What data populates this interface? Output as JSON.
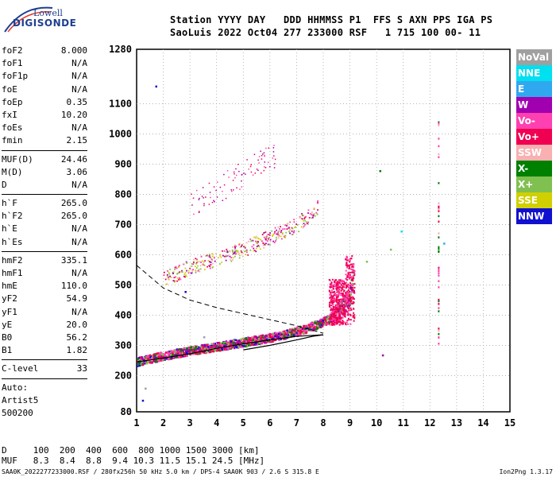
{
  "logo": {
    "line1": "Lowell",
    "line2": "DIGISONDE"
  },
  "header": {
    "line1": "Station YYYY DAY   DDD HHMMSS P1  FFS S AXN PPS IGA PS",
    "line2": "SaoLuis 2022 Oct04 277 233000 RSF   1 715 100 00- 11"
  },
  "params": [
    {
      "k": "foF2",
      "v": "8.000"
    },
    {
      "k": "foF1",
      "v": "N/A"
    },
    {
      "k": "foF1p",
      "v": "N/A"
    },
    {
      "k": "foE",
      "v": "N/A"
    },
    {
      "k": "foEp",
      "v": "0.35"
    },
    {
      "k": "fxI",
      "v": "10.20"
    },
    {
      "k": "foEs",
      "v": "N/A"
    },
    {
      "k": "fmin",
      "v": "2.15"
    },
    {
      "sep": true
    },
    {
      "k": "MUF(D)",
      "v": "24.46"
    },
    {
      "k": "M(D)",
      "v": "3.06"
    },
    {
      "k": "D",
      "v": "N/A"
    },
    {
      "sep": true
    },
    {
      "k": "h`F",
      "v": "265.0"
    },
    {
      "k": "h`F2",
      "v": "265.0"
    },
    {
      "k": "h`E",
      "v": "N/A"
    },
    {
      "k": "h`Es",
      "v": "N/A"
    },
    {
      "sep": true
    },
    {
      "k": "hmF2",
      "v": "335.1"
    },
    {
      "k": "hmF1",
      "v": "N/A"
    },
    {
      "k": "hmE",
      "v": "110.0"
    },
    {
      "k": "yF2",
      "v": "54.9"
    },
    {
      "k": "yF1",
      "v": "N/A"
    },
    {
      "k": "yE",
      "v": "20.0"
    },
    {
      "k": "B0",
      "v": "56.2"
    },
    {
      "k": "B1",
      "v": "1.82"
    },
    {
      "sep": true
    },
    {
      "k": "C-level",
      "v": "33"
    },
    {
      "sep": true
    },
    {
      "k": "Auto:",
      "v": ""
    },
    {
      "k": "Artist5",
      "v": ""
    },
    {
      "k": "500200",
      "v": ""
    }
  ],
  "legend": [
    {
      "label": "NoVal",
      "color": "#a0a0a0"
    },
    {
      "label": "NNE",
      "color": "#00e0f0"
    },
    {
      "label": "E",
      "color": "#30a8f0"
    },
    {
      "label": "W",
      "color": "#a000b0"
    },
    {
      "label": "Vo-",
      "color": "#ff40b0"
    },
    {
      "label": "Vo+",
      "color": "#f00050"
    },
    {
      "label": "SSW",
      "color": "#f8b0b0"
    },
    {
      "label": "X-",
      "color": "#008000"
    },
    {
      "label": "X+",
      "color": "#80c050"
    },
    {
      "label": "SSE",
      "color": "#d0d000"
    },
    {
      "label": "NNW",
      "color": "#1010d0"
    }
  ],
  "footer": {
    "d_line": "D     100  200  400  600  800 1000 1500 3000 [km]",
    "muf_line": "MUF   8.3  8.4  8.8  9.4 10.3 11.5 15.1 24.5 [MHz]",
    "file_line": "SAA0K_2022277233000.RSF / 280fx256h 50 kHz 5.0 km / DPS-4 SAA0K 903 / 2.6 S 315.8 E",
    "version": "Ion2Png 1.3.17"
  },
  "chart_data": {
    "type": "scatter",
    "xlim": [
      1,
      15
    ],
    "ylim": [
      80,
      1280
    ],
    "x_ticks": [
      "1",
      "2",
      "3",
      "4",
      "5",
      "6",
      "7",
      "8",
      "9",
      "10",
      "11",
      "12",
      "13",
      "14",
      "15"
    ],
    "y_ticks": [
      "80",
      "200",
      "300",
      "400",
      "500",
      "600",
      "700",
      "800",
      "900",
      "1000",
      "1100",
      "1280"
    ],
    "grid": "dotted",
    "curves": {
      "profile_lower": [
        [
          1.0,
          245
        ],
        [
          2.0,
          258
        ],
        [
          3.0,
          272
        ],
        [
          4.0,
          290
        ],
        [
          5.0,
          305
        ],
        [
          6.0,
          318
        ],
        [
          7.0,
          330
        ],
        [
          8.0,
          335
        ]
      ],
      "profile_upper": [
        [
          5.0,
          285
        ],
        [
          6.0,
          300
        ],
        [
          7.0,
          318
        ],
        [
          7.6,
          330
        ],
        [
          8.0,
          335
        ]
      ],
      "dashed_profile": [
        [
          1.0,
          565
        ],
        [
          2.0,
          490
        ],
        [
          3.0,
          450
        ],
        [
          4.0,
          425
        ],
        [
          5.0,
          405
        ],
        [
          6.0,
          385
        ],
        [
          7.0,
          365
        ],
        [
          8.0,
          340
        ]
      ],
      "trace_o": [
        [
          1.0,
          245
        ],
        [
          2.0,
          265
        ],
        [
          3.0,
          282
        ],
        [
          4.0,
          295
        ],
        [
          5.0,
          310
        ],
        [
          6.0,
          325
        ],
        [
          7.0,
          345
        ],
        [
          7.8,
          370
        ],
        [
          8.5,
          400
        ],
        [
          9.0,
          460
        ],
        [
          9.1,
          540
        ]
      ],
      "trace_second_hop": [
        [
          2.0,
          520
        ],
        [
          3.0,
          560
        ],
        [
          4.0,
          590
        ],
        [
          5.0,
          620
        ],
        [
          6.0,
          660
        ],
        [
          7.0,
          700
        ],
        [
          7.8,
          760
        ]
      ]
    }
  }
}
